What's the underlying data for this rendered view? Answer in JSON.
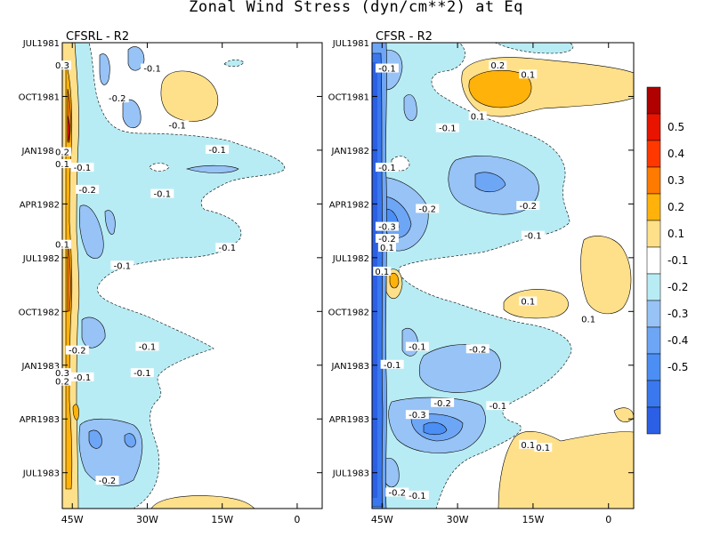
{
  "title": "Zonal Wind Stress (dyn/cm**2) at Eq",
  "colors": {
    "levels": {
      "-0.6": "#2b60e6",
      "-0.5": "#3a78ee",
      "-0.4": "#4b8ff4",
      "-0.3": "#6ea6f6",
      "-0.2": "#97c3f6",
      "-0.1": "#b8ecf4",
      "0": "#ffffff",
      "0.1": "#ffe08a",
      "0.2": "#ffb20a",
      "0.3": "#ff7a00",
      "0.4": "#ff3800",
      "0.5": "#e81400",
      "0.6": "#b00000"
    }
  },
  "chart_data": [
    {
      "type": "heatmap",
      "panel_title": "CFSRL - R2",
      "x_tick_labels": [
        "45W",
        "30W",
        "15W",
        "0"
      ],
      "x_ticks": [
        -45,
        -30,
        -15,
        0
      ],
      "xlim": [
        -47,
        5
      ],
      "y_tick_labels": [
        "JUL1981",
        "OCT1981",
        "JAN1982",
        "APR1982",
        "JUL1982",
        "OCT1982",
        "JAN1983",
        "APR1983",
        "JUL1983"
      ],
      "y_ticks": [
        "1981-07",
        "1981-10",
        "1982-01",
        "1982-04",
        "1982-07",
        "1982-10",
        "1983-01",
        "1983-04",
        "1983-07"
      ],
      "ylim": [
        "1981-07",
        "1983-09"
      ],
      "contour_labels": [
        {
          "text": "-0.1",
          "x": -29,
          "y": "1981-08-15"
        },
        {
          "text": "-0.2",
          "x": -36,
          "y": "1981-10-05"
        },
        {
          "text": "-0.1",
          "x": -24,
          "y": "1981-11-20"
        },
        {
          "text": "-0.1",
          "x": -16,
          "y": "1982-01-01"
        },
        {
          "text": "-0.1",
          "x": -43,
          "y": "1982-02-01"
        },
        {
          "text": "-0.2",
          "x": -42,
          "y": "1982-03-08"
        },
        {
          "text": "-0.1",
          "x": -27,
          "y": "1982-03-15"
        },
        {
          "text": "-0.1",
          "x": -14,
          "y": "1982-06-15"
        },
        {
          "text": "-0.1",
          "x": -35,
          "y": "1982-07-15"
        },
        {
          "text": "-0.1",
          "x": -30,
          "y": "1982-12-01"
        },
        {
          "text": "-0.2",
          "x": -44,
          "y": "1982-12-07"
        },
        {
          "text": "-0.1",
          "x": -31,
          "y": "1983-01-15"
        },
        {
          "text": "-0.1",
          "x": -43,
          "y": "1983-01-22"
        },
        {
          "text": "0.2",
          "x": -47,
          "y": "1983-01-29"
        },
        {
          "text": "-0.2",
          "x": -38,
          "y": "1983-07-15"
        },
        {
          "text": "0.3",
          "x": -47,
          "y": "1981-08-10"
        },
        {
          "text": "0.2",
          "x": -47,
          "y": "1982-01-05"
        },
        {
          "text": "0.1",
          "x": -47,
          "y": "1982-01-25"
        },
        {
          "text": "0.1",
          "x": -47,
          "y": "1982-06-10"
        },
        {
          "text": "0.3",
          "x": -47,
          "y": "1983-01-15"
        }
      ]
    },
    {
      "type": "heatmap",
      "panel_title": "CFSR - R2",
      "x_tick_labels": [
        "45W",
        "30W",
        "15W",
        "0"
      ],
      "x_ticks": [
        -45,
        -30,
        -15,
        0
      ],
      "xlim": [
        -47,
        5
      ],
      "y_tick_labels": [
        "JUL1981",
        "OCT1981",
        "JAN1982",
        "APR1982",
        "JUL1982",
        "OCT1982",
        "JAN1983",
        "APR1983",
        "JUL1983"
      ],
      "y_ticks": [
        "1981-07",
        "1981-10",
        "1982-01",
        "1982-04",
        "1982-07",
        "1982-10",
        "1983-01",
        "1983-04",
        "1983-07"
      ],
      "ylim": [
        "1981-07",
        "1983-09"
      ],
      "contour_labels": [
        {
          "text": "-0.1",
          "x": -44,
          "y": "1981-08-15"
        },
        {
          "text": "0.2",
          "x": -22,
          "y": "1981-08-10"
        },
        {
          "text": "0.1",
          "x": -16,
          "y": "1981-08-25"
        },
        {
          "text": "0.1",
          "x": -26,
          "y": "1981-11-05"
        },
        {
          "text": "-0.1",
          "x": -32,
          "y": "1981-11-25"
        },
        {
          "text": "-0.1",
          "x": -44,
          "y": "1982-02-01"
        },
        {
          "text": "-0.2",
          "x": -36,
          "y": "1982-04-10"
        },
        {
          "text": "-0.2",
          "x": -16,
          "y": "1982-04-05"
        },
        {
          "text": "-0.1",
          "x": -15,
          "y": "1982-05-25"
        },
        {
          "text": "-0.3",
          "x": -44,
          "y": "1982-05-10"
        },
        {
          "text": "-0.2",
          "x": -44,
          "y": "1982-05-30"
        },
        {
          "text": "0.1",
          "x": -44,
          "y": "1982-06-15"
        },
        {
          "text": "0.1",
          "x": -45,
          "y": "1982-07-25"
        },
        {
          "text": "0.1",
          "x": -16,
          "y": "1982-09-15"
        },
        {
          "text": "0.1",
          "x": -4,
          "y": "1982-10-15"
        },
        {
          "text": "-0.1",
          "x": -38,
          "y": "1982-12-01"
        },
        {
          "text": "-0.2",
          "x": -26,
          "y": "1982-12-05"
        },
        {
          "text": "-0.1",
          "x": -43,
          "y": "1983-01-01"
        },
        {
          "text": "-0.2",
          "x": -33,
          "y": "1983-03-05"
        },
        {
          "text": "-0.1",
          "x": -22,
          "y": "1983-03-10"
        },
        {
          "text": "-0.3",
          "x": -38,
          "y": "1983-03-25"
        },
        {
          "text": "0.1",
          "x": -16,
          "y": "1983-05-15"
        },
        {
          "text": "0.1",
          "x": -13,
          "y": "1983-05-20"
        },
        {
          "text": "-0.2",
          "x": -42,
          "y": "1983-08-05"
        },
        {
          "text": "-0.1",
          "x": -38,
          "y": "1983-08-10"
        }
      ]
    }
  ],
  "legend": {
    "colors": [
      "#b00000",
      "#e81400",
      "#ff3800",
      "#ff7a00",
      "#ffb20a",
      "#ffe08a",
      "#ffffff",
      "#b8ecf4",
      "#97c3f6",
      "#6ea6f6",
      "#4b8ff4",
      "#3a78ee",
      "#2b60e6"
    ],
    "labels": [
      "0.5",
      "0.4",
      "0.3",
      "0.2",
      "0.1",
      "-0.1",
      "-0.2",
      "-0.3",
      "-0.4",
      "-0.5"
    ]
  }
}
